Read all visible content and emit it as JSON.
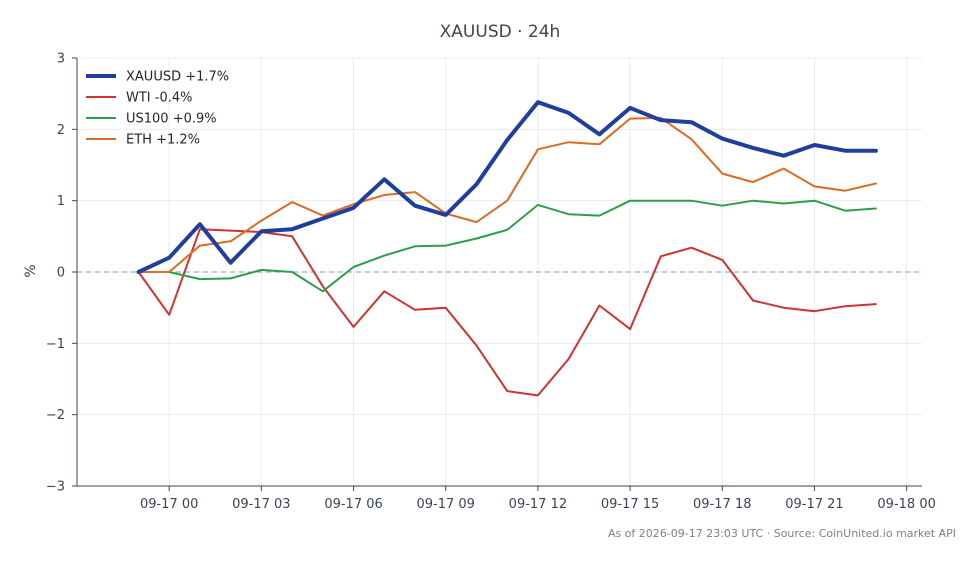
{
  "title": "XAUUSD · 24h",
  "footer": "As of 2026-09-17 23:03 UTC · Source: CoinUnited.io market API",
  "chart_data": {
    "type": "line",
    "title": "XAUUSD · 24h",
    "xlabel": "",
    "ylabel": "%",
    "ylim": [
      -3,
      3
    ],
    "yticks": [
      -3,
      -2,
      -1,
      0,
      1,
      2,
      3
    ],
    "ytick_labels": [
      "−3",
      "−2",
      "−1",
      "0",
      "1",
      "2",
      "3"
    ],
    "xlim": [
      "2026-09-16 21:00",
      "2026-09-18 00:30"
    ],
    "xticks": [
      "2026-09-17 00:00",
      "2026-09-17 03:00",
      "2026-09-17 06:00",
      "2026-09-17 09:00",
      "2026-09-17 12:00",
      "2026-09-17 15:00",
      "2026-09-17 18:00",
      "2026-09-17 21:00",
      "2026-09-18 00:00"
    ],
    "xtick_labels": [
      "09-17 00",
      "09-17 03",
      "09-17 06",
      "09-17 09",
      "09-17 12",
      "09-17 15",
      "09-17 18",
      "09-17 21",
      "09-18 00"
    ],
    "x": [
      "2026-09-16 23:00",
      "2026-09-17 00:00",
      "2026-09-17 01:00",
      "2026-09-17 02:00",
      "2026-09-17 03:00",
      "2026-09-17 04:00",
      "2026-09-17 05:00",
      "2026-09-17 06:00",
      "2026-09-17 07:00",
      "2026-09-17 08:00",
      "2026-09-17 09:00",
      "2026-09-17 10:00",
      "2026-09-17 11:00",
      "2026-09-17 12:00",
      "2026-09-17 13:00",
      "2026-09-17 14:00",
      "2026-09-17 15:00",
      "2026-09-17 16:00",
      "2026-09-17 17:00",
      "2026-09-17 18:00",
      "2026-09-17 19:00",
      "2026-09-17 20:00",
      "2026-09-17 21:00",
      "2026-09-17 22:00",
      "2026-09-17 23:00"
    ],
    "zero_line": true,
    "grid": true,
    "legend_position": "top-left",
    "series": [
      {
        "name": "XAUUSD",
        "legend": "XAUUSD +1.7%",
        "color": "#1f3fa0",
        "emphasis": true,
        "values": [
          0.0,
          0.2,
          0.67,
          0.13,
          0.57,
          0.6,
          0.75,
          0.9,
          1.3,
          0.93,
          0.8,
          1.23,
          1.85,
          2.38,
          2.23,
          1.93,
          2.3,
          2.13,
          2.1,
          1.87,
          1.74,
          1.63,
          1.78,
          1.7,
          1.7
        ]
      },
      {
        "name": "WTI",
        "legend": "WTI -0.4%",
        "color": "#d03232",
        "values": [
          0.0,
          -0.6,
          0.6,
          0.58,
          0.56,
          0.5,
          -0.2,
          -0.77,
          -0.27,
          -0.53,
          -0.5,
          -1.03,
          -1.67,
          -1.73,
          -1.22,
          -0.47,
          -0.8,
          0.22,
          0.34,
          0.17,
          -0.4,
          -0.5,
          -0.55,
          -0.48,
          -0.45
        ]
      },
      {
        "name": "US100",
        "legend": "US100 +0.9%",
        "color": "#2ca048",
        "values": [
          0.0,
          0.0,
          -0.1,
          -0.09,
          0.03,
          0.0,
          -0.27,
          0.07,
          0.23,
          0.36,
          0.37,
          0.47,
          0.59,
          0.94,
          0.81,
          0.79,
          1.0,
          1.0,
          1.0,
          0.93,
          1.0,
          0.96,
          1.0,
          0.86,
          0.89
        ]
      },
      {
        "name": "ETH",
        "legend": "ETH +1.2%",
        "color": "#e06a20",
        "values": [
          0.0,
          0.0,
          0.37,
          0.43,
          0.72,
          0.98,
          0.79,
          0.95,
          1.08,
          1.12,
          0.82,
          0.7,
          1.0,
          1.72,
          1.82,
          1.79,
          2.15,
          2.16,
          1.86,
          1.38,
          1.26,
          1.45,
          1.2,
          1.14,
          1.24
        ]
      }
    ]
  }
}
